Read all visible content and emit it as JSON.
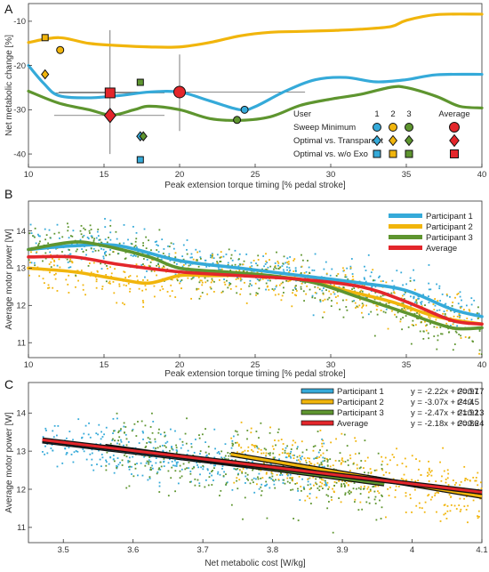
{
  "colors": {
    "p1": "#35aad9",
    "p2": "#f1b50c",
    "p3": "#5e952f",
    "avg": "#e3262b"
  },
  "chart_data": [
    {
      "panel_label": "A",
      "type": "line",
      "xlabel": "Peak extension torque timing [% pedal stroke]",
      "ylabel": "Net metabolic change [%]",
      "xlim": [
        10,
        40
      ],
      "ylim": [
        -43,
        -6
      ],
      "x_ticks": [
        10,
        15,
        20,
        25,
        30,
        35,
        40
      ],
      "y_ticks": [
        -10,
        -20,
        -30,
        -40
      ],
      "x_tick_labels": [
        "10",
        "15",
        "20",
        "25",
        "30",
        "35",
        "40"
      ],
      "y_tick_labels": [
        "-10",
        "-20",
        "-30",
        "-40"
      ],
      "curves": [
        {
          "series": "p2",
          "points": [
            [
              10,
              -14.8
            ],
            [
              12,
              -13.7
            ],
            [
              14,
              -15.0
            ],
            [
              16,
              -15.5
            ],
            [
              18,
              -15.8
            ],
            [
              20,
              -15.8
            ],
            [
              22,
              -14.8
            ],
            [
              24,
              -13.3
            ],
            [
              26,
              -12.5
            ],
            [
              28,
              -12.3
            ],
            [
              30,
              -12.1
            ],
            [
              32,
              -11.8
            ],
            [
              34,
              -11.2
            ],
            [
              35,
              -9.8
            ],
            [
              37,
              -8.5
            ],
            [
              40,
              -8.4
            ]
          ]
        },
        {
          "series": "p1",
          "points": [
            [
              10,
              -20.0
            ],
            [
              11,
              -24.0
            ],
            [
              12,
              -26.8
            ],
            [
              14,
              -27.3
            ],
            [
              16,
              -26.8
            ],
            [
              18,
              -26.0
            ],
            [
              20,
              -26.0
            ],
            [
              22,
              -28.0
            ],
            [
              24,
              -30.0
            ],
            [
              25,
              -29.3
            ],
            [
              27,
              -25.8
            ],
            [
              29,
              -23.2
            ],
            [
              31,
              -22.7
            ],
            [
              33,
              -23.7
            ],
            [
              35,
              -23.2
            ],
            [
              37,
              -22.1
            ],
            [
              40,
              -22.0
            ]
          ]
        },
        {
          "series": "p3",
          "points": [
            [
              10,
              -25.8
            ],
            [
              12,
              -28.5
            ],
            [
              14,
              -30.0
            ],
            [
              15.5,
              -31.2
            ],
            [
              17,
              -30.0
            ],
            [
              18,
              -29.2
            ],
            [
              20,
              -30.0
            ],
            [
              22,
              -32.0
            ],
            [
              24,
              -32.4
            ],
            [
              26,
              -31.6
            ],
            [
              28,
              -29.0
            ],
            [
              30,
              -27.6
            ],
            [
              32,
              -26.5
            ],
            [
              34,
              -24.9
            ],
            [
              35,
              -25.0
            ],
            [
              37,
              -27.0
            ],
            [
              38.5,
              -29.2
            ],
            [
              40,
              -29.6
            ]
          ]
        }
      ],
      "sweep_minimum": [
        {
          "series": "p1",
          "x": 24.3,
          "y": -30.0
        },
        {
          "series": "p2",
          "x": 12.1,
          "y": -16.5
        },
        {
          "series": "p3",
          "x": 23.8,
          "y": -32.3
        },
        {
          "series": "avg",
          "x": 20.0,
          "y": -26.0
        }
      ],
      "optimal_vs_transparent": [
        {
          "series": "p1",
          "x": 17.4,
          "y": -36.0
        },
        {
          "series": "p2",
          "x": 11.1,
          "y": -22.0
        },
        {
          "series": "p3",
          "x": 17.6,
          "y": -36.0
        },
        {
          "series": "avg",
          "x": 15.4,
          "y": -31.3
        }
      ],
      "optimal_vs_without_exo": [
        {
          "series": "p1",
          "x": 17.4,
          "y": -41.3
        },
        {
          "series": "p2",
          "x": 11.1,
          "y": -13.7
        },
        {
          "series": "p3",
          "x": 17.4,
          "y": -23.8
        },
        {
          "series": "avg",
          "x": 15.4,
          "y": -26.2
        }
      ],
      "error_bars": [
        {
          "x": 20.0,
          "y": -26.0,
          "x_low": 12.0,
          "x_high": 28.3,
          "y_low": -34.8,
          "y_high": -17.5
        },
        {
          "x": 15.4,
          "y": -31.3,
          "x_low": 11.7,
          "x_high": 19.0,
          "y_low": -40.0,
          "y_high": -12.0
        },
        {
          "x": 15.4,
          "y": -26.2,
          "x_low": 11.7,
          "x_high": 19.0
        }
      ],
      "legend": {
        "placement": "bottom-right",
        "title": "User",
        "column_headers": [
          "1",
          "2",
          "3",
          "Average"
        ],
        "rows": [
          {
            "label": "Sweep Minimum",
            "marker": "circle"
          },
          {
            "label": "Optimal vs. Transparent",
            "marker": "diamond"
          },
          {
            "label": "Optimal vs. w/o Exo",
            "marker": "square"
          }
        ]
      }
    },
    {
      "panel_label": "B",
      "type": "scatter",
      "xlabel": "Peak extension torque timing [% pedal stroke]",
      "ylabel": "Average motor power [W]",
      "xlim": [
        10,
        40
      ],
      "ylim": [
        10.6,
        14.8
      ],
      "x_ticks": [
        10,
        15,
        20,
        25,
        30,
        35,
        40
      ],
      "y_ticks": [
        11,
        12,
        13,
        14
      ],
      "x_tick_labels": [
        "10",
        "15",
        "20",
        "25",
        "30",
        "35",
        "40"
      ],
      "y_tick_labels": [
        "11",
        "12",
        "13",
        "14"
      ],
      "scatter_seed": 11,
      "points_per_series": 420,
      "series": [
        {
          "key": "p1",
          "name": "Participant 1",
          "noise": 0.27,
          "x": [
            10,
            13,
            16,
            20,
            24,
            28,
            32,
            35,
            38,
            40
          ],
          "y": [
            13.5,
            13.6,
            13.6,
            13.2,
            13.0,
            12.8,
            12.6,
            12.4,
            11.9,
            11.7
          ]
        },
        {
          "key": "p2",
          "name": "Participant 2",
          "noise": 0.32,
          "x": [
            10,
            13,
            16,
            18,
            20,
            22,
            25,
            28,
            31,
            34,
            37,
            40
          ],
          "y": [
            13.0,
            12.9,
            12.7,
            12.6,
            12.8,
            12.8,
            12.8,
            12.7,
            12.4,
            12.1,
            11.7,
            11.5
          ]
        },
        {
          "key": "p3",
          "name": "Participant 3",
          "noise": 0.3,
          "x": [
            10,
            13,
            15,
            18,
            20,
            23,
            26,
            29,
            32,
            35,
            38,
            40
          ],
          "y": [
            13.5,
            13.7,
            13.6,
            13.3,
            13.0,
            12.9,
            12.8,
            12.6,
            12.2,
            11.8,
            11.4,
            11.4
          ]
        },
        {
          "key": "avg",
          "name": "Average",
          "noise": 0,
          "x": [
            10,
            13,
            16,
            20,
            24,
            28,
            32,
            35,
            38,
            40
          ],
          "y": [
            13.3,
            13.3,
            13.1,
            12.9,
            12.8,
            12.7,
            12.5,
            12.1,
            11.6,
            11.5
          ]
        }
      ],
      "legend": {
        "placement": "top-right"
      }
    },
    {
      "panel_label": "C",
      "type": "scatter",
      "xlabel": "Net metabolic cost [W/kg]",
      "ylabel": "Average motor power [W]",
      "xlim": [
        3.45,
        4.1
      ],
      "ylim": [
        10.6,
        14.8
      ],
      "x_ticks": [
        3.5,
        3.6,
        3.7,
        3.8,
        3.9,
        4.0,
        4.1
      ],
      "y_ticks": [
        11,
        12,
        13,
        14
      ],
      "x_tick_labels": [
        "3.5",
        "3.6",
        "3.7",
        "3.8",
        "3.9",
        "4",
        "4.1"
      ],
      "y_tick_labels": [
        "11",
        "12",
        "13",
        "14"
      ],
      "scatter_seed": 29,
      "points_per_series": 400,
      "series": [
        {
          "key": "p1",
          "name": "Participant 1",
          "equation": "y = -2.22x + 20.97",
          "r2": "r²=0.17",
          "slope": -2.22,
          "intercept": 20.97,
          "x_range": [
            3.47,
            3.88
          ],
          "noise": 0.32
        },
        {
          "key": "p2",
          "name": "Participant 2",
          "equation": "y = -3.07x + 24.4",
          "r2": "r²=0.5",
          "slope": -3.07,
          "intercept": 24.4,
          "x_range": [
            3.74,
            4.1
          ],
          "noise": 0.38
        },
        {
          "key": "p3",
          "name": "Participant 3",
          "equation": "y = -2.47x + 21.92",
          "r2": "r²=0.13",
          "slope": -2.47,
          "intercept": 21.92,
          "x_range": [
            3.56,
            3.96
          ],
          "noise": 0.45
        },
        {
          "key": "avg",
          "name": "Average",
          "equation": "y = -2.18x + 20.86",
          "r2": "r²=0.24",
          "slope": -2.18,
          "intercept": 20.86,
          "x_range": [
            3.47,
            4.1
          ],
          "noise": 0
        }
      ],
      "legend": {
        "placement": "top-right"
      }
    }
  ]
}
